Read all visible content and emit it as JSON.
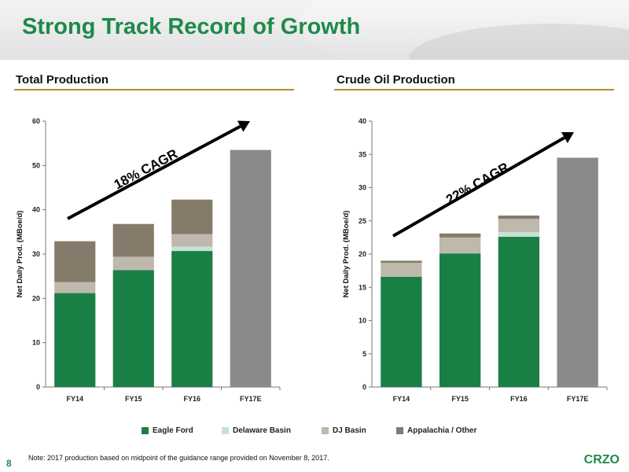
{
  "slide": {
    "title": "Strong Track Record of Growth",
    "page_number": "8",
    "note": "Note: 2017 production based on midpoint of the guidance range provided on November 8, 2017.",
    "logo": "CRZO"
  },
  "colors": {
    "brand_green": "#1e8a4a",
    "rule": "#b58a2a",
    "Eagle Ford": "#1a7f45",
    "Delaware Basin": "#c6e3d3",
    "DJ Basin": "#bfb8ac",
    "Appalachia / Other": "#857b6a",
    "FY17E": "#8a8a8a"
  },
  "legend": [
    "Eagle Ford",
    "Delaware Basin",
    "DJ Basin",
    "Appalachia / Other"
  ],
  "chart_data": [
    {
      "type": "bar",
      "stacked": true,
      "title": "Total Production",
      "ylabel": "Net Daily Prod. (MBoe/d)",
      "ylim": [
        0,
        60
      ],
      "yticks": [
        0,
        10,
        20,
        30,
        40,
        50,
        60
      ],
      "categories": [
        "FY14",
        "FY15",
        "FY16",
        "FY17E"
      ],
      "series": [
        {
          "name": "Eagle Ford",
          "values": [
            21.2,
            26.4,
            30.7,
            0
          ]
        },
        {
          "name": "Delaware Basin",
          "values": [
            0,
            0,
            1.0,
            0
          ]
        },
        {
          "name": "DJ Basin",
          "values": [
            2.5,
            3.0,
            2.8,
            0
          ]
        },
        {
          "name": "Appalachia / Other",
          "values": [
            9.2,
            7.4,
            7.8,
            0
          ]
        }
      ],
      "total_only": {
        "category": "FY17E",
        "value": 53.5
      },
      "annotation": "18% CAGR"
    },
    {
      "type": "bar",
      "stacked": true,
      "title": "Crude Oil Production",
      "ylabel": "Net Daily Prod. (MBoe/d)",
      "ylim": [
        0,
        40
      ],
      "yticks": [
        0,
        5,
        10,
        15,
        20,
        25,
        30,
        35,
        40
      ],
      "categories": [
        "FY14",
        "FY15",
        "FY16",
        "FY17E"
      ],
      "series": [
        {
          "name": "Eagle Ford",
          "values": [
            16.6,
            20.1,
            22.6,
            0
          ]
        },
        {
          "name": "Delaware Basin",
          "values": [
            0,
            0,
            0.7,
            0
          ]
        },
        {
          "name": "DJ Basin",
          "values": [
            2.1,
            2.4,
            2.0,
            0
          ]
        },
        {
          "name": "Appalachia / Other",
          "values": [
            0.3,
            0.6,
            0.5,
            0
          ]
        }
      ],
      "total_only": {
        "category": "FY17E",
        "value": 34.5
      },
      "annotation": "22% CAGR"
    }
  ]
}
